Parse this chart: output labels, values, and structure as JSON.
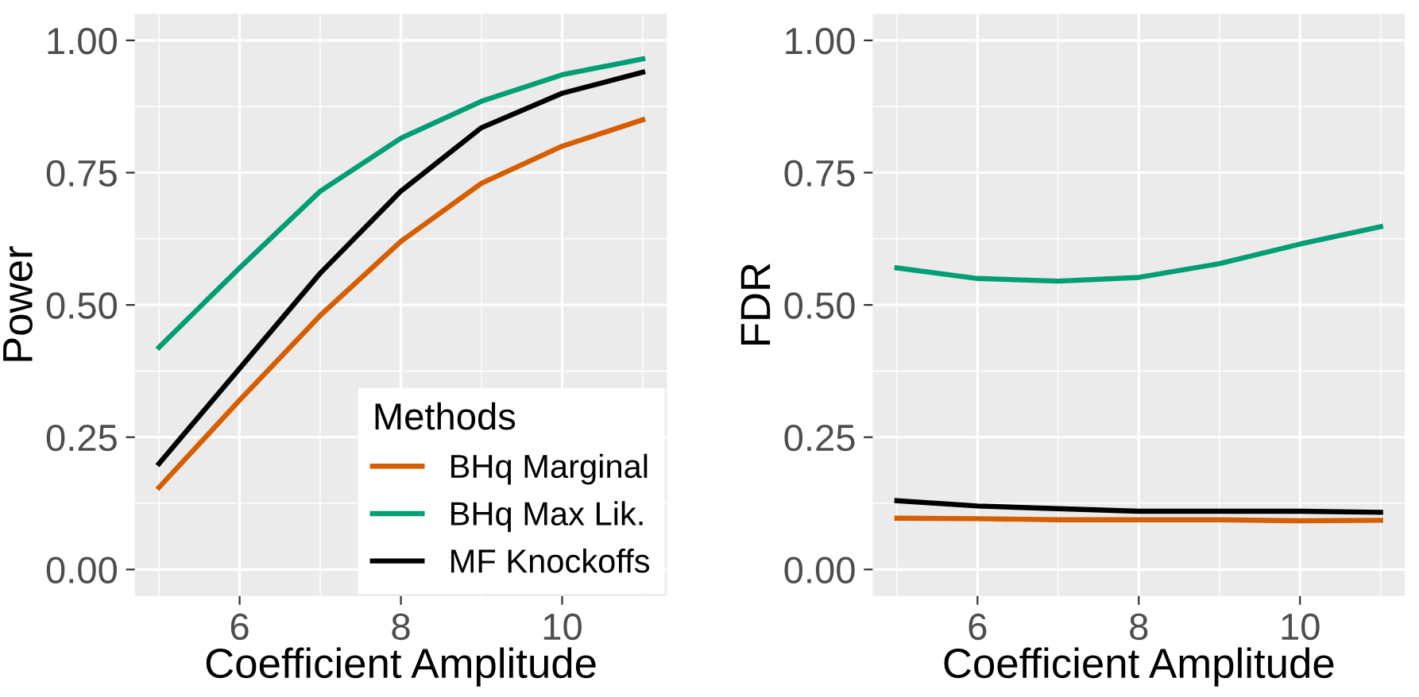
{
  "chart_data": [
    {
      "type": "line",
      "xlabel": "Coefficient Amplitude",
      "ylabel": "Power",
      "legend_title": "Methods",
      "legend": "bottom right",
      "grid": true,
      "x": [
        5,
        6,
        7,
        8,
        9,
        10,
        11
      ],
      "xlim": [
        4.7,
        11.3
      ],
      "xticks": [
        6,
        8,
        10
      ],
      "ylim": [
        -0.05,
        1.05
      ],
      "yticks": [
        {
          "value": 0,
          "label": "0.00"
        },
        {
          "value": 0.25,
          "label": "0.25"
        },
        {
          "value": 0.5,
          "label": "0.50"
        },
        {
          "value": 0.75,
          "label": "0.75"
        },
        {
          "value": 1,
          "label": "1.00"
        }
      ],
      "series": [
        {
          "name": "BHq Marginal",
          "color": "#d55e00",
          "values": [
            0.155,
            0.32,
            0.48,
            0.62,
            0.73,
            0.8,
            0.85
          ]
        },
        {
          "name": "BHq Max Lik.",
          "color": "#009e73",
          "values": [
            0.42,
            0.57,
            0.715,
            0.815,
            0.885,
            0.935,
            0.965
          ]
        },
        {
          "name": "MF Knockoffs",
          "color": "#000000",
          "values": [
            0.2,
            0.38,
            0.56,
            0.715,
            0.835,
            0.9,
            0.94
          ]
        }
      ]
    },
    {
      "type": "line",
      "xlabel": "Coefficient Amplitude",
      "ylabel": "FDR",
      "grid": true,
      "x": [
        5,
        6,
        7,
        8,
        9,
        10,
        11
      ],
      "xlim": [
        4.7,
        11.3
      ],
      "xticks": [
        6,
        8,
        10
      ],
      "ylim": [
        -0.05,
        1.05
      ],
      "yticks": [
        {
          "value": 0,
          "label": "0.00"
        },
        {
          "value": 0.25,
          "label": "0.25"
        },
        {
          "value": 0.5,
          "label": "0.50"
        },
        {
          "value": 0.75,
          "label": "0.75"
        },
        {
          "value": 1,
          "label": "1.00"
        }
      ],
      "series": [
        {
          "color": "#d55e00",
          "values": [
            0.097,
            0.096,
            0.094,
            0.094,
            0.094,
            0.092,
            0.093
          ]
        },
        {
          "color": "#009e73",
          "values": [
            0.57,
            0.55,
            0.545,
            0.552,
            0.578,
            0.615,
            0.648
          ]
        },
        {
          "color": "#000000",
          "values": [
            0.13,
            0.12,
            0.115,
            0.11,
            0.11,
            0.11,
            0.108
          ]
        }
      ]
    }
  ]
}
